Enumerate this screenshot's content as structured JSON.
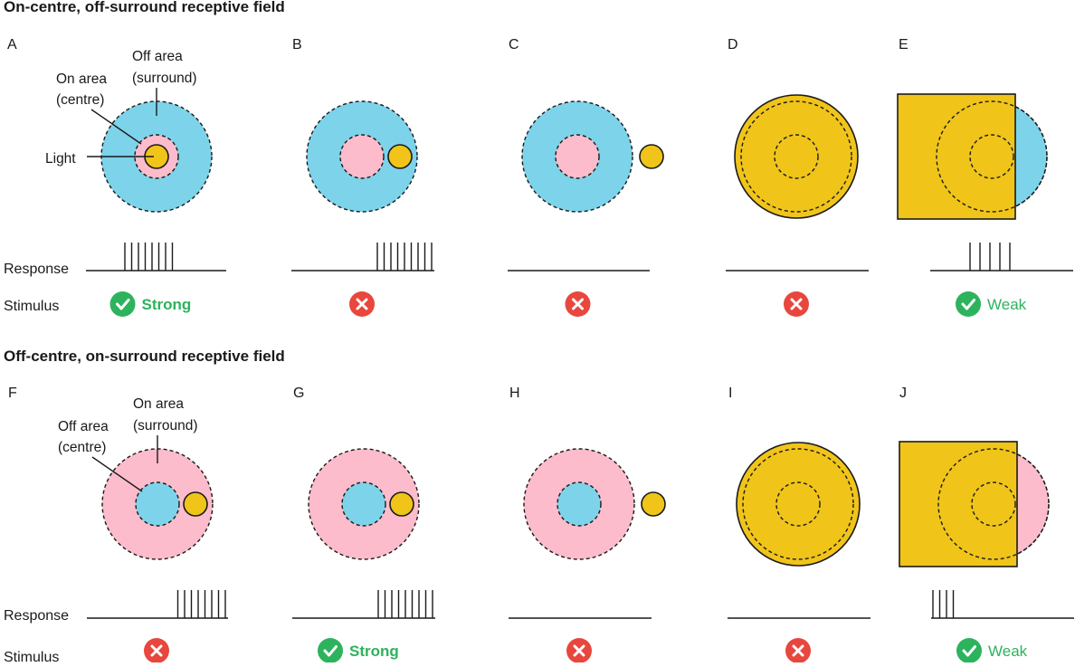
{
  "colors": {
    "blue": "#7dd3ea",
    "pink": "#fcbccb",
    "yellow": "#f0c419",
    "check": "#2db35d",
    "cross": "#e8473d",
    "ink": "#1a1a1a"
  },
  "labels": {
    "response": "Response",
    "stimulus": "Stimulus"
  },
  "rows": [
    {
      "title": "On-centre, off-surround receptive field",
      "field": "on-centre",
      "annotations": {
        "surround_line1": "Off area",
        "surround_line2": "(surround)",
        "centre_line1": "On area",
        "centre_line2": "(centre)",
        "light": "Light"
      },
      "panels": [
        {
          "letter": "A",
          "stimulus": "centre-spot",
          "spikes": 8,
          "outcome": "yes",
          "label": "Strong"
        },
        {
          "letter": "B",
          "stimulus": "surround-spot",
          "spikes": 9,
          "outcome": "no",
          "label": ""
        },
        {
          "letter": "C",
          "stimulus": "outside-spot",
          "spikes": 0,
          "outcome": "no",
          "label": ""
        },
        {
          "letter": "D",
          "stimulus": "full-field",
          "spikes": 0,
          "outcome": "no",
          "label": ""
        },
        {
          "letter": "E",
          "stimulus": "square-partial",
          "spikes": 5,
          "outcome": "yes",
          "label": "Weak"
        }
      ]
    },
    {
      "title": "Off-centre, on-surround receptive field",
      "field": "off-centre",
      "annotations": {
        "surround_line1": "On area",
        "surround_line2": "(surround)",
        "centre_line1": "Off area",
        "centre_line2": "(centre)",
        "light": ""
      },
      "panels": [
        {
          "letter": "F",
          "stimulus": "surround-spot",
          "spikes": 8,
          "outcome": "no",
          "label": ""
        },
        {
          "letter": "G",
          "stimulus": "surround-spot",
          "spikes": 9,
          "outcome": "yes",
          "label": "Strong"
        },
        {
          "letter": "H",
          "stimulus": "outside-spot",
          "spikes": 0,
          "outcome": "no",
          "label": ""
        },
        {
          "letter": "I",
          "stimulus": "full-field",
          "spikes": 0,
          "outcome": "no",
          "label": ""
        },
        {
          "letter": "J",
          "stimulus": "square-partial",
          "spikes": 4,
          "outcome": "yes",
          "label": "Weak"
        }
      ]
    }
  ]
}
